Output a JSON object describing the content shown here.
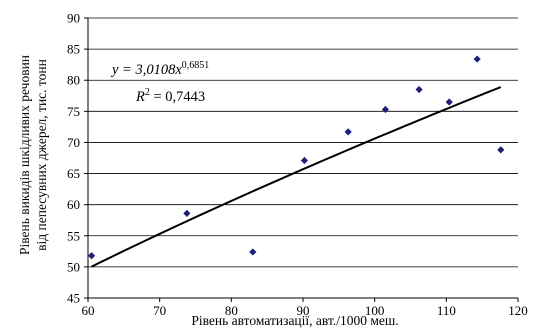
{
  "chart_data": {
    "type": "scatter",
    "xlabel": "Рівень автоматизації, авт./1000 меш.",
    "ylabel_line1": "Рівень викидів шкідливих речовин",
    "ylabel_line2": "від пепесувних джерел, тис. тонн",
    "xlim": [
      60,
      120
    ],
    "ylim": [
      45,
      90
    ],
    "xticks": [
      60,
      70,
      80,
      90,
      100,
      110,
      120
    ],
    "yticks": [
      45,
      50,
      55,
      60,
      65,
      70,
      75,
      80,
      85,
      90
    ],
    "grid": "horizontal",
    "marker_color": "#1f1f7a",
    "trendline_color": "#000000",
    "x": [
      60.5,
      73.8,
      83.0,
      90.2,
      96.3,
      101.5,
      106.2,
      110.4,
      114.3,
      117.6
    ],
    "y": [
      51.8,
      58.6,
      52.4,
      67.1,
      71.7,
      75.3,
      78.5,
      76.5,
      83.4,
      68.8
    ],
    "trendline": {
      "type": "power",
      "coef_a": 3.0108,
      "exponent": 0.6851,
      "x_range": [
        60.5,
        117.6
      ],
      "equation_main": "y = 3,0108x",
      "equation_exp": "0,6851",
      "r2_main": "R",
      "r2_exp": "2",
      "r2_value": " = 0,7443"
    }
  }
}
